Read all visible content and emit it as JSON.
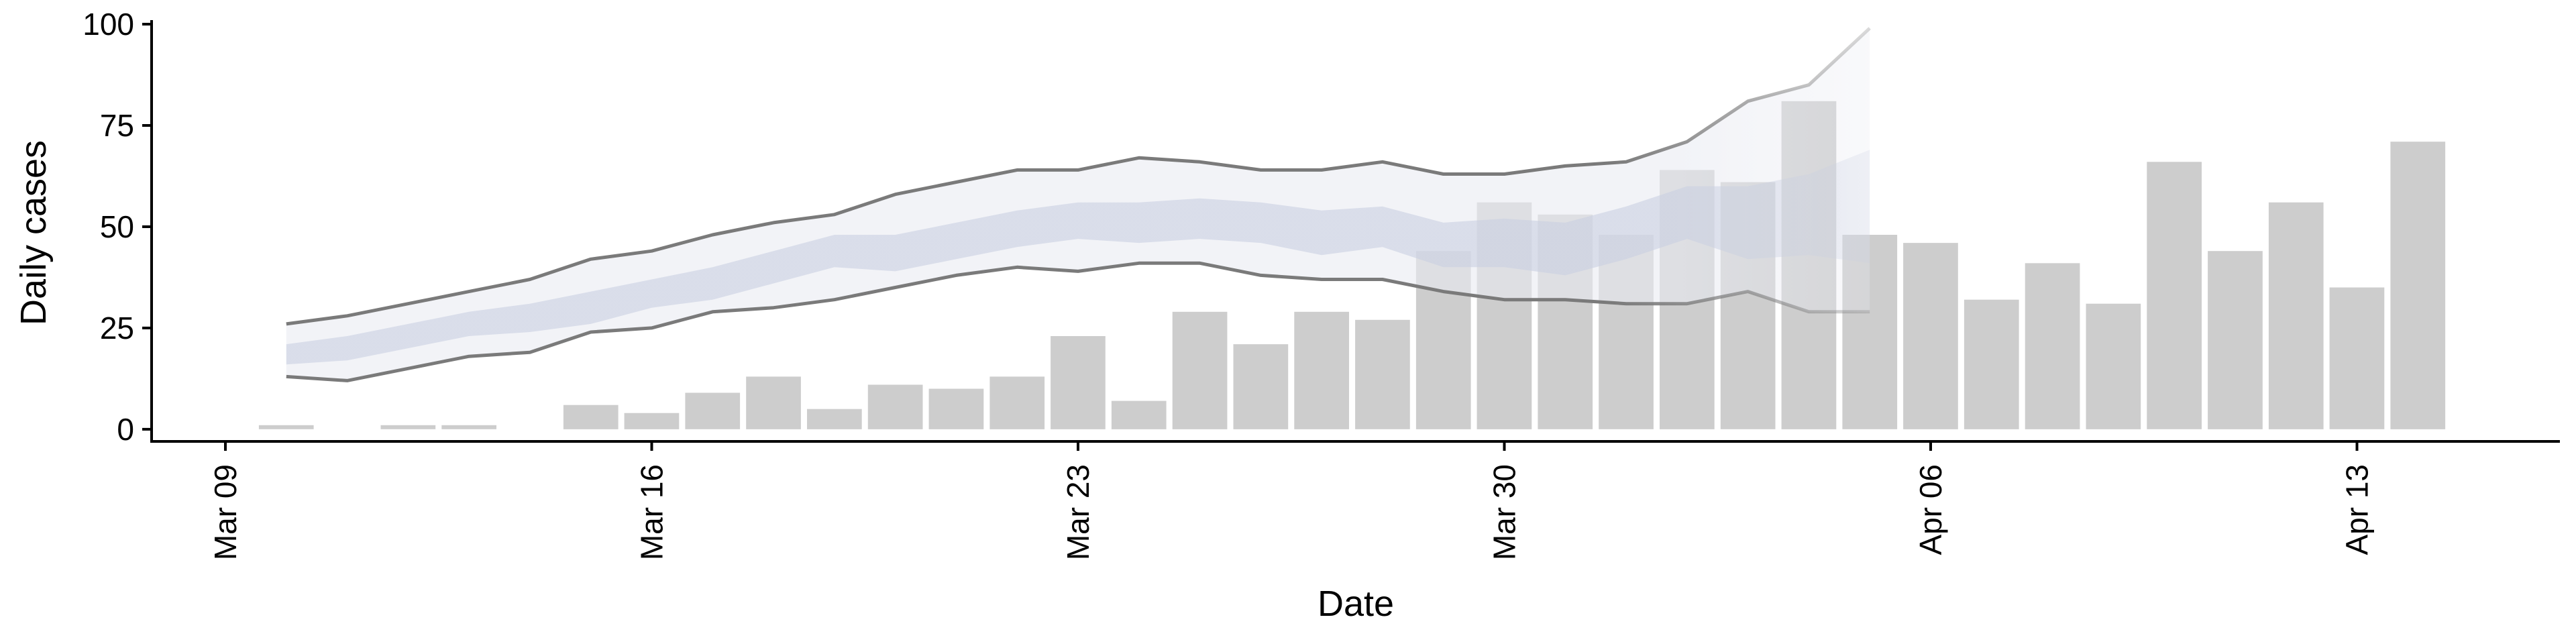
{
  "chart_data": {
    "type": "bar",
    "xlabel": "Date",
    "ylabel": "Daily cases",
    "ylim": [
      -3,
      101
    ],
    "xlim": [
      "2020-03-09",
      "2020-04-16"
    ],
    "y_ticks": [
      0,
      25,
      50,
      75,
      100
    ],
    "x_ticks": [
      {
        "date": "2020-03-09",
        "label": "Mar 09"
      },
      {
        "date": "2020-03-16",
        "label": "Mar 16"
      },
      {
        "date": "2020-03-23",
        "label": "Mar 23"
      },
      {
        "date": "2020-03-30",
        "label": "Mar 30"
      },
      {
        "date": "2020-04-06",
        "label": "Apr 06"
      },
      {
        "date": "2020-04-13",
        "label": "Apr 13"
      }
    ],
    "grid": false,
    "legend": "none",
    "series": [
      {
        "kind": "bar",
        "dates": [
          "2020-03-10",
          "2020-03-12",
          "2020-03-13",
          "2020-03-15",
          "2020-03-16",
          "2020-03-17",
          "2020-03-18",
          "2020-03-19",
          "2020-03-20",
          "2020-03-21",
          "2020-03-22",
          "2020-03-23",
          "2020-03-24",
          "2020-03-25",
          "2020-03-26",
          "2020-03-27",
          "2020-03-28",
          "2020-03-29",
          "2020-03-30",
          "2020-03-31",
          "2020-04-01",
          "2020-04-02",
          "2020-04-03",
          "2020-04-04",
          "2020-04-05",
          "2020-04-06",
          "2020-04-07",
          "2020-04-08",
          "2020-04-09",
          "2020-04-10",
          "2020-04-11",
          "2020-04-12",
          "2020-04-13",
          "2020-04-14"
        ],
        "values": [
          1,
          1,
          1,
          6,
          4,
          9,
          13,
          5,
          11,
          10,
          13,
          23,
          7,
          29,
          21,
          29,
          27,
          44,
          56,
          53,
          48,
          64,
          61,
          81,
          48,
          46,
          32,
          41,
          31,
          66,
          44,
          56,
          35,
          71
        ]
      },
      {
        "kind": "band_outer",
        "dates": [
          "2020-03-10",
          "2020-03-11",
          "2020-03-12",
          "2020-03-13",
          "2020-03-14",
          "2020-03-15",
          "2020-03-16",
          "2020-03-17",
          "2020-03-18",
          "2020-03-19",
          "2020-03-20",
          "2020-03-21",
          "2020-03-22",
          "2020-03-23",
          "2020-03-24",
          "2020-03-25",
          "2020-03-26",
          "2020-03-27",
          "2020-03-28",
          "2020-03-29",
          "2020-03-30",
          "2020-03-31",
          "2020-04-01",
          "2020-04-02",
          "2020-04-03",
          "2020-04-04",
          "2020-04-05"
        ],
        "lower": [
          13,
          12,
          15,
          18,
          19,
          24,
          25,
          29,
          30,
          32,
          35,
          38,
          40,
          39,
          41,
          41,
          38,
          37,
          37,
          34,
          32,
          32,
          31,
          31,
          34,
          29,
          29
        ],
        "upper": [
          26,
          28,
          31,
          34,
          37,
          42,
          44,
          48,
          51,
          53,
          58,
          61,
          64,
          64,
          67,
          66,
          64,
          64,
          66,
          63,
          63,
          65,
          66,
          71,
          81,
          85,
          99
        ]
      },
      {
        "kind": "band_inner",
        "dates": [
          "2020-03-10",
          "2020-03-11",
          "2020-03-12",
          "2020-03-13",
          "2020-03-14",
          "2020-03-15",
          "2020-03-16",
          "2020-03-17",
          "2020-03-18",
          "2020-03-19",
          "2020-03-20",
          "2020-03-21",
          "2020-03-22",
          "2020-03-23",
          "2020-03-24",
          "2020-03-25",
          "2020-03-26",
          "2020-03-27",
          "2020-03-28",
          "2020-03-29",
          "2020-03-30",
          "2020-03-31",
          "2020-04-01",
          "2020-04-02",
          "2020-04-03",
          "2020-04-04",
          "2020-04-05"
        ],
        "lower": [
          16,
          17,
          20,
          23,
          24,
          26,
          30,
          32,
          36,
          40,
          39,
          42,
          45,
          47,
          46,
          47,
          46,
          43,
          45,
          40,
          40,
          38,
          42,
          47,
          42,
          43,
          41
        ],
        "upper": [
          21,
          23,
          26,
          29,
          31,
          34,
          37,
          40,
          44,
          48,
          48,
          51,
          54,
          56,
          56,
          57,
          56,
          54,
          55,
          51,
          52,
          51,
          55,
          60,
          60,
          63,
          69
        ]
      }
    ],
    "colors": {
      "bar": "#cdcdcd",
      "band_outer": "#e9ebf2",
      "band_inner": "#c9cfe1",
      "bound_line": "#7a7a7a",
      "axis": "#000000"
    }
  }
}
